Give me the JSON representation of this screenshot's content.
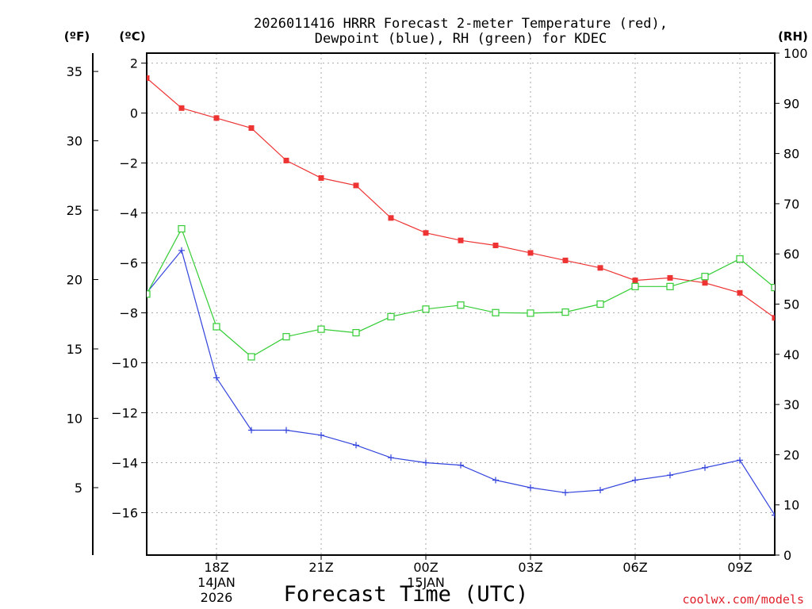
{
  "chart_data": {
    "type": "line",
    "title": [
      "2026011416 HRRR Forecast 2-meter Temperature (red),",
      "Dewpoint (blue), RH (green) for KDEC"
    ],
    "xlabel": "Forecast Time (UTC)",
    "units": {
      "fahrenheit": "(ºF)",
      "celsius": "(ºC)",
      "rh": "(RH)"
    },
    "x_hours": [
      16,
      17,
      18,
      19,
      20,
      21,
      22,
      23,
      24,
      25,
      26,
      27,
      28,
      29,
      30,
      31,
      32,
      33,
      34
    ],
    "xlim": [
      16,
      34
    ],
    "x_ticks": [
      {
        "hour": 18,
        "label": "18Z",
        "sub1": "14JAN",
        "sub2": "2026"
      },
      {
        "hour": 21,
        "label": "21Z",
        "sub1": "",
        "sub2": ""
      },
      {
        "hour": 24,
        "label": "00Z",
        "sub1": "15JAN",
        "sub2": ""
      },
      {
        "hour": 27,
        "label": "03Z",
        "sub1": "",
        "sub2": ""
      },
      {
        "hour": 30,
        "label": "06Z",
        "sub1": "",
        "sub2": ""
      },
      {
        "hour": 33,
        "label": "09Z",
        "sub1": "",
        "sub2": ""
      }
    ],
    "ylim_c": [
      -17.7,
      2.4
    ],
    "ylim_rh": [
      0,
      100
    ],
    "yticks_c": [
      "2",
      "0",
      "−2",
      "−4",
      "−6",
      "−8",
      "−10",
      "−12",
      "−14",
      "−16"
    ],
    "yticks_f": [
      "35",
      "30",
      "25",
      "20",
      "15",
      "10",
      "5"
    ],
    "yticks_rh": [
      "100",
      "90",
      "80",
      "70",
      "60",
      "50",
      "40",
      "30",
      "20",
      "10",
      "0"
    ],
    "series": [
      {
        "name": "Temperature",
        "unit": "C",
        "color": "#ee3333",
        "marker": "filled-square",
        "values": [
          1.4,
          0.2,
          -0.2,
          -0.6,
          -1.9,
          -2.6,
          -2.9,
          -4.2,
          -4.8,
          -5.1,
          -5.3,
          -5.6,
          -5.9,
          -6.2,
          -6.7,
          -6.6,
          -6.8,
          -7.2,
          -8.2
        ]
      },
      {
        "name": "Dewpoint",
        "unit": "C",
        "color": "#3344dd",
        "marker": "plus",
        "values": [
          -7.2,
          -5.5,
          -10.6,
          -12.7,
          -12.7,
          -12.9,
          -13.3,
          -13.8,
          -14.0,
          -14.1,
          -14.7,
          -15.0,
          -15.2,
          -15.1,
          -14.7,
          -14.5,
          -14.2,
          -13.9,
          -16.1
        ]
      },
      {
        "name": "RH",
        "unit": "%",
        "color": "#33cc33",
        "marker": "open-square",
        "values": [
          52,
          65,
          45.5,
          39.5,
          43.5,
          45,
          44.3,
          47.5,
          49,
          49.8,
          48.3,
          48.2,
          48.4,
          50,
          53.5,
          53.5,
          55.5,
          59,
          53.3
        ]
      }
    ]
  },
  "credit": "coolwx.com/models"
}
